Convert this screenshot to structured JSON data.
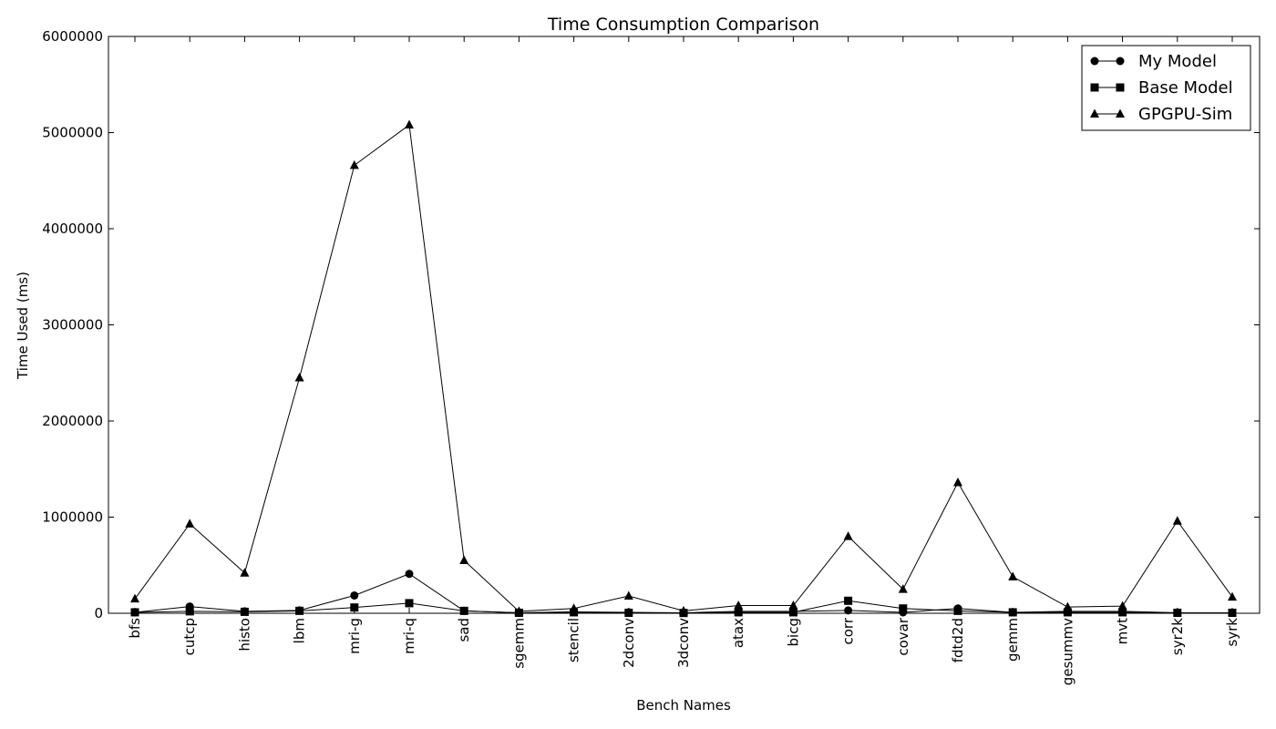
{
  "chart_data": {
    "type": "line",
    "title": "Time Consumption Comparison",
    "xlabel": "Bench Names",
    "ylabel": "Time Used (ms)",
    "ylim": [
      0,
      6000000
    ],
    "yticks": [
      0,
      1000000,
      2000000,
      3000000,
      4000000,
      5000000,
      6000000
    ],
    "ytick_labels": [
      "0",
      "1000000",
      "2000000",
      "3000000",
      "4000000",
      "5000000",
      "6000000"
    ],
    "grid": false,
    "legend_position": "top-right",
    "categories": [
      "bfs",
      "cutcp",
      "histo",
      "lbm",
      "mri-g",
      "mri-q",
      "sad",
      "sgemm",
      "stencil",
      "2dconv",
      "3dconv",
      "atax",
      "bicg",
      "corr",
      "covar",
      "fdtd2d",
      "gemm",
      "gesummv",
      "mvt",
      "syr2k",
      "syrk"
    ],
    "series": [
      {
        "name": "My Model",
        "marker": "circle",
        "values": [
          10000,
          70000,
          20000,
          30000,
          185000,
          410000,
          25000,
          5000,
          15000,
          10000,
          5000,
          20000,
          20000,
          30000,
          10000,
          50000,
          10000,
          20000,
          20000,
          5000,
          5000
        ]
      },
      {
        "name": "Base Model",
        "marker": "square",
        "values": [
          10000,
          20000,
          15000,
          25000,
          60000,
          105000,
          25000,
          5000,
          10000,
          5000,
          3000,
          10000,
          10000,
          130000,
          50000,
          25000,
          10000,
          10000,
          10000,
          5000,
          5000
        ]
      },
      {
        "name": "GPGPU-Sim",
        "marker": "triangle",
        "values": [
          150000,
          930000,
          420000,
          2450000,
          4660000,
          5080000,
          550000,
          20000,
          50000,
          180000,
          25000,
          80000,
          80000,
          800000,
          250000,
          1360000,
          380000,
          65000,
          75000,
          960000,
          170000
        ]
      }
    ]
  }
}
